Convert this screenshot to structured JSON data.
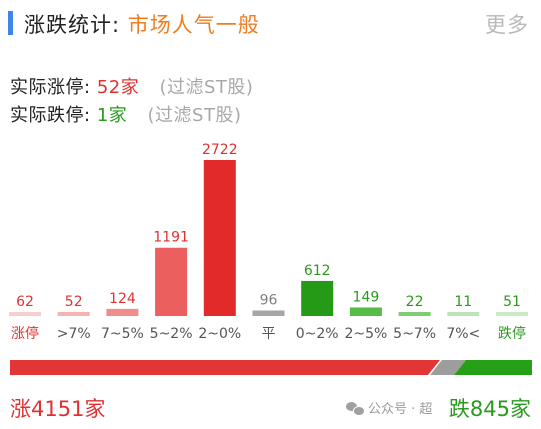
{
  "header": {
    "title_label": "涨跌统计:",
    "sentiment": "市场人气一般",
    "more_label": "更多"
  },
  "stats": {
    "limit_up_label": "实际涨停:",
    "limit_up_count": "52家",
    "limit_up_note": "(过滤ST股)",
    "limit_down_label": "实际跌停:",
    "limit_down_count": "1家",
    "limit_down_note": "(过滤ST股)"
  },
  "chart_data": {
    "type": "bar",
    "categories": [
      "涨停",
      ">7%",
      "7~5%",
      "5~2%",
      "2~0%",
      "平",
      "0~2%",
      "2~5%",
      "5~7%",
      "7%<",
      "跌停"
    ],
    "values": [
      62,
      52,
      124,
      1191,
      2722,
      96,
      612,
      149,
      22,
      11,
      51
    ],
    "bar_colors": [
      "#f6cfcf",
      "#f4b2b2",
      "#ef8c8c",
      "#ec5f5f",
      "#e32a2a",
      "#a6a6a6",
      "#249a16",
      "#55bd46",
      "#7fcd72",
      "#bfe3b7",
      "#cdeac7"
    ],
    "label_colors": [
      "#e03131",
      "#555555",
      "#555555",
      "#555555",
      "#555555",
      "#555555",
      "#555555",
      "#555555",
      "#555555",
      "#555555",
      "#2a9a1e"
    ],
    "value_colors": [
      "#e03131",
      "#e03131",
      "#e03131",
      "#e03131",
      "#e03131",
      "#7f7f7f",
      "#2a9a1e",
      "#2a9a1e",
      "#2a9a1e",
      "#2a9a1e",
      "#2a9a1e"
    ],
    "ylim": [
      0,
      2722
    ]
  },
  "breadth": {
    "up_count": 4151,
    "flat_count": 96,
    "down_count": 845,
    "up_label": "涨4151家",
    "down_label": "跌845家",
    "colors": {
      "up": "#e23636",
      "flat": "#9d9d9d",
      "down": "#26a017"
    }
  },
  "watermark": {
    "icon": "wechat-icon",
    "text": "公众号 · 超"
  }
}
